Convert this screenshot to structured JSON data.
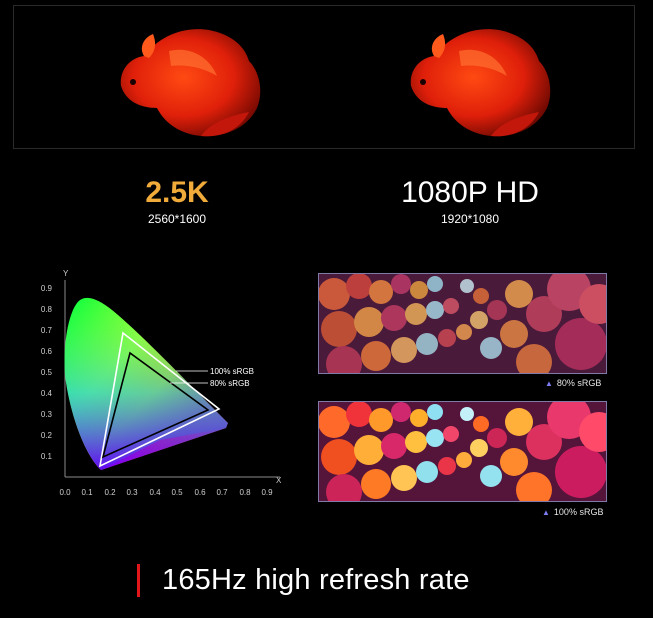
{
  "images": {
    "fish_left_alt": "Red betta fish (2.5K)",
    "fish_right_alt": "Red betta fish (1080P HD)",
    "ball_pattern_top_caption": "80% sRGB",
    "ball_pattern_bottom_caption": "100% sRGB"
  },
  "resolutions": {
    "left": {
      "title": "2.5K",
      "subtitle": "2560*1600",
      "color": "#f0ab3a"
    },
    "right": {
      "title": "1080P HD",
      "subtitle": "1920*1080",
      "color": "#ffffff"
    }
  },
  "chart": {
    "y_axis_label": "Y",
    "x_axis_label": "X",
    "y_ticks": [
      "0.9",
      "0.8",
      "0.7",
      "0.6",
      "0.5",
      "0.4",
      "0.3",
      "0.2",
      "0.1"
    ],
    "x_ticks": [
      "0.0",
      "0.1",
      "0.2",
      "0.3",
      "0.4",
      "0.5",
      "0.6",
      "0.7",
      "0.8",
      "0.9"
    ],
    "label_100": "100% sRGB",
    "label_80": "80% sRGB"
  },
  "footer": {
    "headline": "165Hz high refresh rate",
    "accent_color": "#e1161a"
  }
}
